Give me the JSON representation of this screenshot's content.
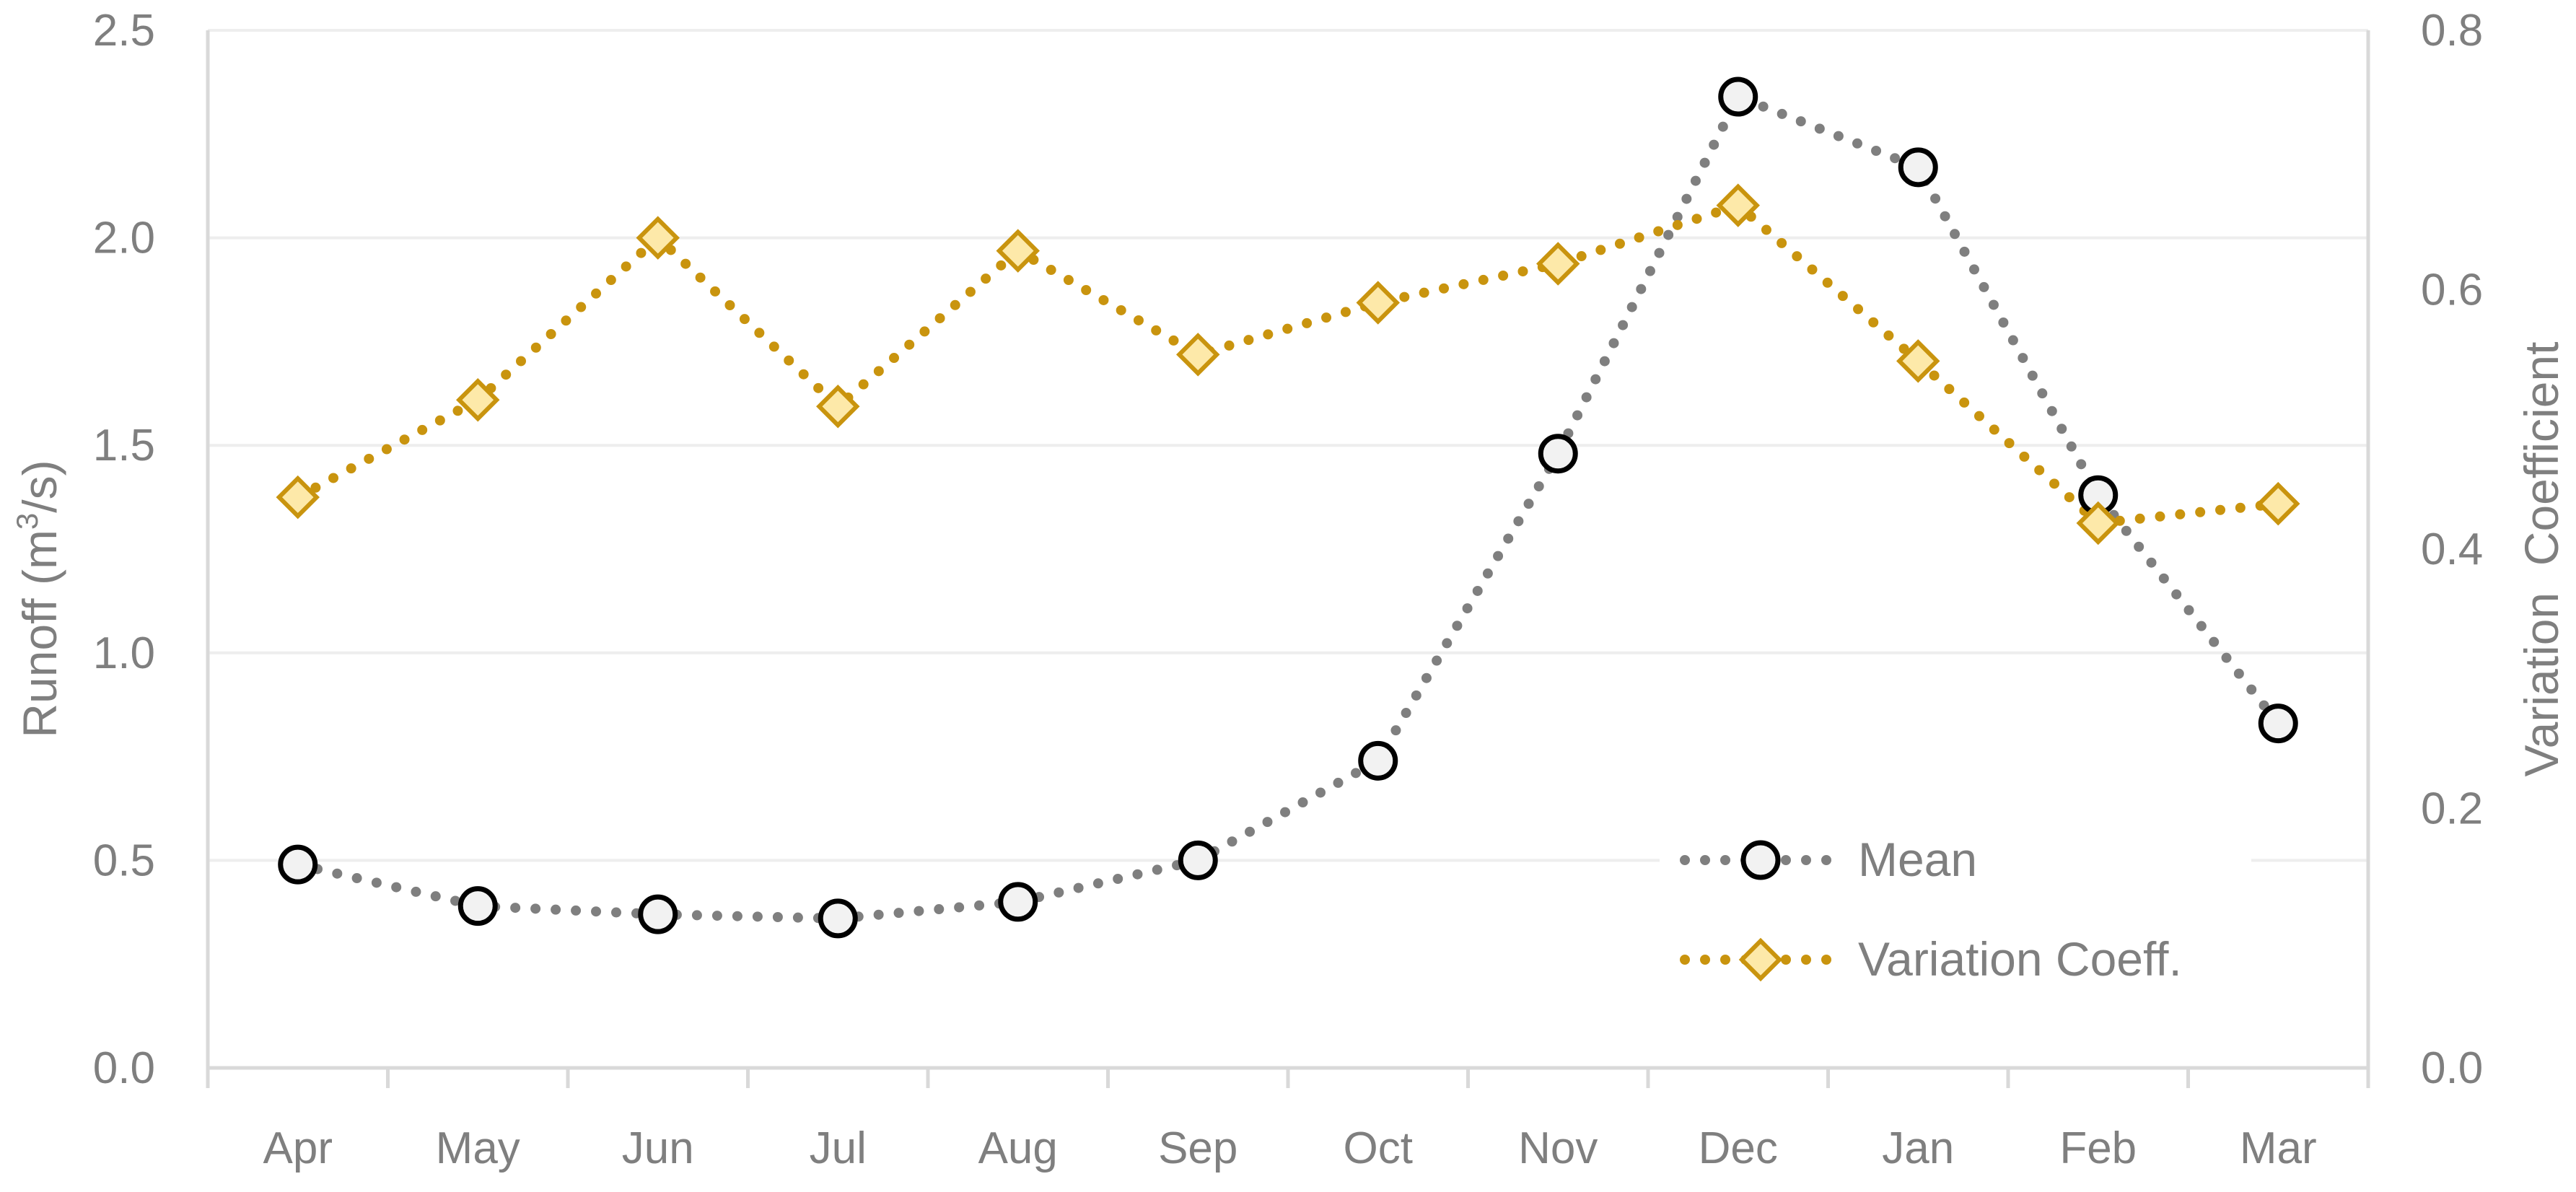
{
  "chart_data": {
    "type": "line",
    "categories": [
      "Apr",
      "May",
      "Jun",
      "Jul",
      "Aug",
      "Sep",
      "Oct",
      "Nov",
      "Dec",
      "Jan",
      "Feb",
      "Mar"
    ],
    "series": [
      {
        "name": "Mean",
        "axis": "left",
        "color": "#7f7f7f",
        "marker": "circle",
        "values": [
          0.49,
          0.39,
          0.37,
          0.36,
          0.4,
          0.5,
          0.74,
          1.48,
          2.34,
          2.17,
          1.38,
          0.83
        ]
      },
      {
        "name": "Variation Coeff.",
        "axis": "right",
        "color": "#c9940e",
        "marker": "diamond",
        "values": [
          0.44,
          0.515,
          0.64,
          0.51,
          0.63,
          0.55,
          0.59,
          0.62,
          0.665,
          0.545,
          0.42,
          0.435
        ]
      }
    ],
    "left_axis": {
      "label_prefix": "Runoff (m",
      "label_superscript": "3",
      "label_suffix": "/s)",
      "ylim": [
        0,
        2.5
      ],
      "ticks": [
        "0.0",
        "0.5",
        "1.0",
        "1.5",
        "2.0",
        "2.5"
      ]
    },
    "right_axis": {
      "label": "Variation  Coefficient",
      "ylim": [
        0,
        0.8
      ],
      "ticks": [
        "0.0",
        "0.2",
        "0.4",
        "0.6",
        "0.8"
      ]
    },
    "grid": true,
    "legend_position": "bottom-right"
  }
}
